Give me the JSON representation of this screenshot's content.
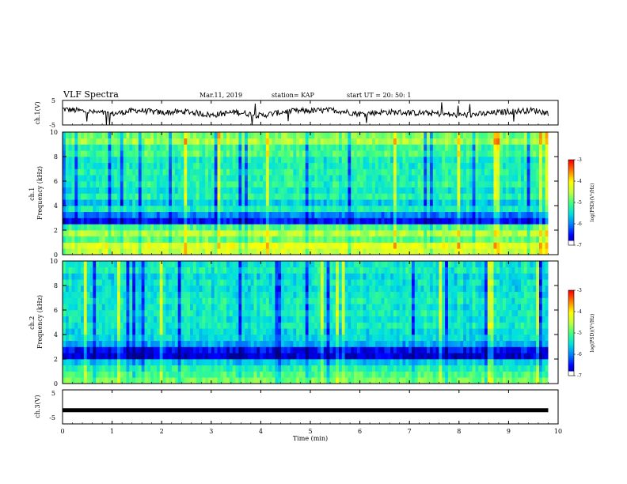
{
  "header": {
    "title": "VLF Spectra",
    "date": "Mar.11, 2019",
    "station": "station= KAP",
    "start": "start UT =  20: 50: 1"
  },
  "colorbar": {
    "label": "log(PSD)(V²/Hz)",
    "ticks": [
      "-3",
      "-4",
      "-5",
      "-6",
      "-7"
    ],
    "colors": [
      "#000080",
      "#0000ff",
      "#0080ff",
      "#00e0e0",
      "#40ff80",
      "#c0ff40",
      "#ffff00",
      "#ff8000",
      "#ff0000",
      "#ffffff"
    ]
  },
  "chart_data": [
    {
      "type": "line",
      "name": "ch1-waveform",
      "ylabel": "ch.1(V)",
      "ylim": [
        -5,
        5
      ],
      "yticks": [
        "5",
        "-5"
      ],
      "x_range": [
        0,
        9.8
      ],
      "note_values": "noisy waveform oscillating roughly between -2 and +2 V with occasional spikes",
      "series": [
        {
          "x": [
            0,
            0.5,
            1.0,
            1.5,
            2.0,
            2.5,
            3.0,
            3.5,
            4.0,
            4.5,
            5.0,
            5.5,
            6.0,
            6.5,
            7.0,
            7.5,
            8.0,
            8.5,
            9.0,
            9.5,
            9.8
          ],
          "values": [
            1.5,
            0.5,
            -0.5,
            1.0,
            0.0,
            0.5,
            -1.0,
            0.3,
            -1.2,
            0.5,
            0.8,
            1.0,
            -0.5,
            0.3,
            0.0,
            -0.3,
            -1.0,
            -0.5,
            0.5,
            1.0,
            -0.2
          ]
        }
      ]
    },
    {
      "type": "heatmap",
      "name": "ch1-spectrogram",
      "ylabel": "ch.1\nFrequency (kHz)",
      "ylim": [
        0,
        10
      ],
      "yticks": [
        "0",
        "2",
        "4",
        "6",
        "8",
        "10"
      ],
      "x_range": [
        0,
        9.8
      ],
      "zlim": [
        -7,
        -3
      ],
      "freq_kHz": [
        0.5,
        1.0,
        1.5,
        2.0,
        2.5,
        3.0,
        3.5,
        4.0,
        4.5,
        5.0,
        5.5,
        6.0,
        6.5,
        7.0,
        7.5,
        8.0,
        8.5,
        9.0,
        9.5,
        10.0
      ],
      "mean_log_psd": [
        -4.4,
        -4.2,
        -4.9,
        -4.5,
        -5.0,
        -6.5,
        -6.0,
        -5.3,
        -5.6,
        -5.2,
        -5.4,
        -5.2,
        -5.3,
        -5.2,
        -5.3,
        -5.3,
        -5.0,
        -5.1,
        -4.6,
        -4.8
      ]
    },
    {
      "type": "heatmap",
      "name": "ch2-spectrogram",
      "ylabel": "ch.2\nFrequency (kHz)",
      "ylim": [
        0,
        10
      ],
      "yticks": [
        "0",
        "2",
        "4",
        "6",
        "8",
        "10"
      ],
      "x_range": [
        0,
        9.8
      ],
      "zlim": [
        -7,
        -3
      ],
      "freq_kHz": [
        0.5,
        1.0,
        1.5,
        2.0,
        2.5,
        3.0,
        3.5,
        4.0,
        4.5,
        5.0,
        5.5,
        6.0,
        6.5,
        7.0,
        7.5,
        8.0,
        8.5,
        9.0,
        9.5,
        10.0
      ],
      "mean_log_psd": [
        -4.8,
        -5.0,
        -5.2,
        -5.6,
        -6.7,
        -6.5,
        -5.8,
        -5.5,
        -5.5,
        -5.3,
        -5.4,
        -5.3,
        -5.4,
        -5.3,
        -5.4,
        -5.5,
        -5.4,
        -5.5,
        -5.3,
        -5.4
      ]
    },
    {
      "type": "line",
      "name": "ch3-waveform",
      "ylabel": "ch.3(V)",
      "ylim": [
        -5,
        5
      ],
      "yticks": [
        "5",
        "-5"
      ],
      "x_range": [
        0,
        9.8
      ],
      "series": [
        {
          "x": [
            0,
            9.8
          ],
          "values": [
            -1.0,
            -1.0
          ]
        }
      ]
    }
  ],
  "x_axis": {
    "label": "Time (min)",
    "ticks": [
      "0",
      "1",
      "2",
      "3",
      "4",
      "5",
      "6",
      "7",
      "8",
      "9",
      "10"
    ],
    "range": [
      0,
      10
    ]
  }
}
